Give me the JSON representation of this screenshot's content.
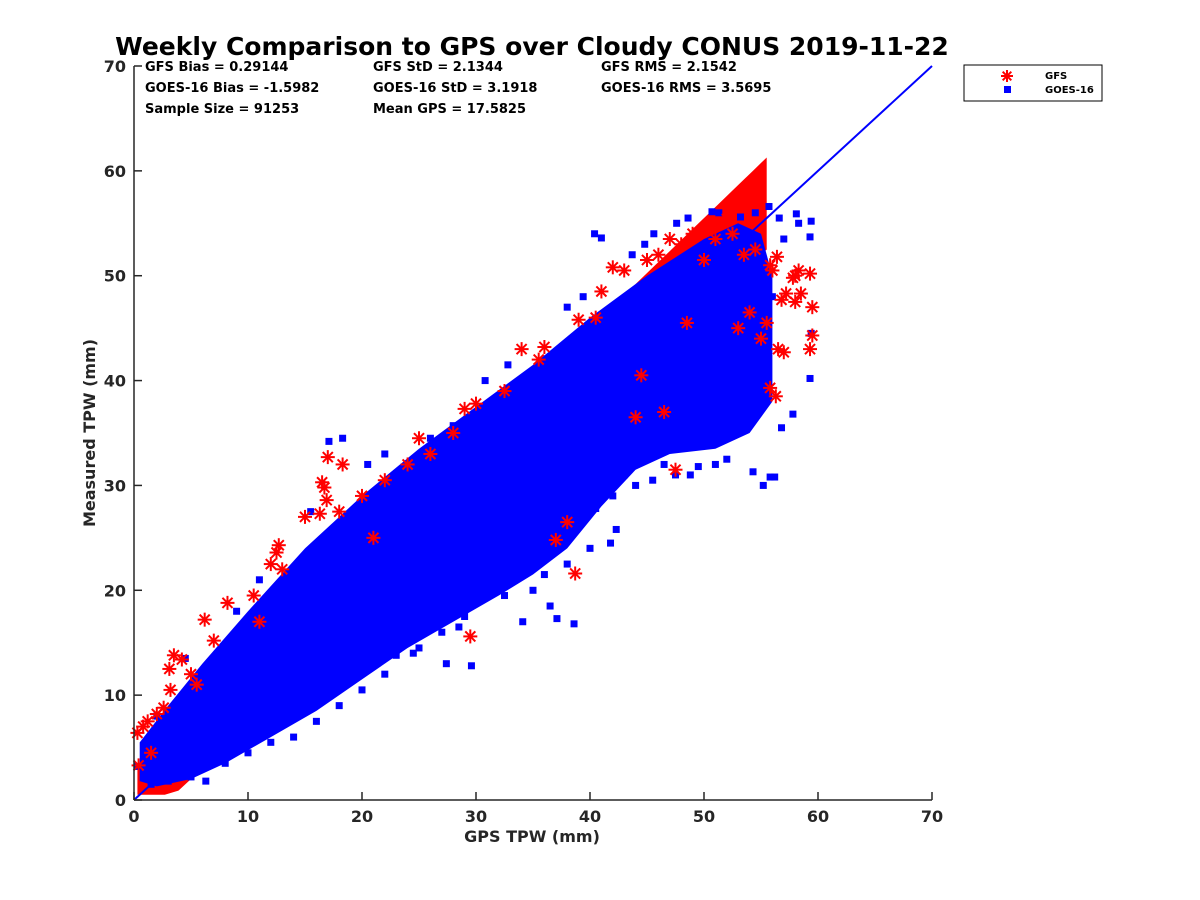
{
  "chart_data": {
    "type": "scatter",
    "title": "Weekly Comparison to GPS over Cloudy CONUS 2019-11-22",
    "xlabel": "GPS TPW (mm)",
    "ylabel": "Measured TPW (mm)",
    "xlim": [
      0,
      70
    ],
    "ylim": [
      0,
      70
    ],
    "x_ticks": [
      "0",
      "10",
      "20",
      "30",
      "40",
      "50",
      "60",
      "70"
    ],
    "y_ticks": [
      "0",
      "10",
      "20",
      "30",
      "40",
      "50",
      "60",
      "70"
    ],
    "grid": false,
    "legend_position": "outside-top-right",
    "statistics": [
      [
        "GFS Bias = 0.29144",
        "GFS StD = 2.1344",
        "GFS RMS = 2.1542"
      ],
      [
        "GOES-16 Bias = -1.5982",
        "GOES-16 StD = 3.1918",
        "GOES-16 RMS = 3.5695"
      ],
      [
        "Sample Size = 91253",
        "Mean GPS = 17.5825"
      ]
    ],
    "reference_line": {
      "x": [
        0,
        70
      ],
      "y": [
        0,
        70
      ],
      "color": "#0000ff"
    },
    "series": [
      {
        "name": "GFS",
        "marker": "asterisk",
        "color": "#ff0000",
        "points": [
          [
            0.3,
            6.4
          ],
          [
            0.4,
            3.3
          ],
          [
            0.8,
            7.0
          ],
          [
            1.2,
            7.5
          ],
          [
            2.0,
            8.2
          ],
          [
            2.6,
            8.8
          ],
          [
            3.1,
            12.5
          ],
          [
            3.5,
            13.8
          ],
          [
            4.2,
            13.4
          ],
          [
            5.0,
            12.0
          ],
          [
            6.2,
            17.2
          ],
          [
            7.0,
            15.2
          ],
          [
            8.2,
            18.8
          ],
          [
            10.5,
            19.5
          ],
          [
            12.0,
            22.5
          ],
          [
            12.5,
            23.6
          ],
          [
            12.7,
            24.3
          ],
          [
            13.0,
            22.0
          ],
          [
            15.0,
            27.0
          ],
          [
            16.3,
            27.3
          ],
          [
            16.5,
            30.3
          ],
          [
            16.7,
            29.8
          ],
          [
            17.0,
            32.7
          ],
          [
            16.9,
            28.6
          ],
          [
            18.0,
            27.5
          ],
          [
            18.3,
            32.0
          ],
          [
            20.0,
            29.0
          ],
          [
            22.0,
            30.5
          ],
          [
            24.0,
            32.0
          ],
          [
            25.0,
            34.5
          ],
          [
            26.0,
            33.0
          ],
          [
            28.0,
            35.0
          ],
          [
            29.0,
            37.3
          ],
          [
            29.5,
            15.6
          ],
          [
            30.0,
            37.8
          ],
          [
            32.5,
            39.0
          ],
          [
            34.0,
            43.0
          ],
          [
            35.5,
            42.0
          ],
          [
            36.0,
            43.2
          ],
          [
            37.0,
            24.8
          ],
          [
            38.0,
            26.5
          ],
          [
            38.7,
            21.6
          ],
          [
            39.0,
            45.8
          ],
          [
            40.5,
            46.0
          ],
          [
            41.0,
            48.5
          ],
          [
            42.0,
            50.8
          ],
          [
            43.0,
            50.5
          ],
          [
            44.0,
            36.5
          ],
          [
            45.0,
            51.5
          ],
          [
            46.0,
            52.0
          ],
          [
            46.5,
            37.0
          ],
          [
            47.0,
            53.5
          ],
          [
            48.0,
            53.0
          ],
          [
            48.5,
            45.5
          ],
          [
            49.0,
            54.0
          ],
          [
            50.0,
            51.5
          ],
          [
            51.0,
            53.5
          ],
          [
            52.0,
            55.4
          ],
          [
            52.5,
            54.0
          ],
          [
            53.0,
            45.0
          ],
          [
            53.5,
            52.0
          ],
          [
            54.0,
            46.5
          ],
          [
            54.5,
            52.5
          ],
          [
            55.0,
            44.0
          ],
          [
            55.5,
            45.5
          ],
          [
            55.8,
            39.3
          ],
          [
            55.8,
            51.0
          ],
          [
            56.0,
            50.5
          ],
          [
            56.3,
            38.5
          ],
          [
            56.4,
            51.8
          ],
          [
            56.5,
            43.0
          ],
          [
            56.8,
            47.7
          ],
          [
            57.0,
            42.7
          ],
          [
            57.2,
            48.3
          ],
          [
            57.8,
            49.8
          ],
          [
            58.0,
            47.5
          ],
          [
            58.0,
            50.0
          ],
          [
            58.3,
            50.5
          ],
          [
            58.5,
            48.3
          ],
          [
            59.3,
            50.2
          ],
          [
            59.5,
            47.0
          ],
          [
            59.5,
            44.3
          ],
          [
            59.3,
            43.0
          ],
          [
            44.5,
            40.5
          ],
          [
            47.5,
            31.5
          ],
          [
            21.0,
            25.0
          ],
          [
            11.0,
            17.0
          ],
          [
            5.5,
            11.0
          ],
          [
            1.5,
            4.5
          ],
          [
            3.2,
            10.5
          ]
        ]
      },
      {
        "name": "GOES-16",
        "marker": "square",
        "color": "#0000ff",
        "points": [
          [
            38.0,
            22.5
          ],
          [
            38.6,
            16.8
          ],
          [
            37.1,
            17.3
          ],
          [
            34.1,
            17.0
          ],
          [
            29.6,
            12.8
          ],
          [
            27.4,
            13.0
          ],
          [
            23.0,
            13.8
          ],
          [
            35.0,
            20.0
          ],
          [
            36.5,
            18.5
          ],
          [
            40.0,
            24.0
          ],
          [
            42.3,
            25.8
          ],
          [
            41.8,
            24.5
          ],
          [
            44.0,
            30.0
          ],
          [
            45.5,
            30.5
          ],
          [
            47.5,
            31.0
          ],
          [
            48.8,
            31.0
          ],
          [
            49.5,
            31.8
          ],
          [
            51.0,
            32.0
          ],
          [
            52.0,
            32.5
          ],
          [
            55.2,
            30.0
          ],
          [
            56.2,
            30.8
          ],
          [
            55.8,
            30.8
          ],
          [
            54.3,
            31.3
          ],
          [
            56.8,
            35.5
          ],
          [
            57.8,
            36.8
          ],
          [
            59.3,
            40.2
          ],
          [
            59.4,
            44.5
          ],
          [
            59.3,
            53.7
          ],
          [
            59.4,
            55.2
          ],
          [
            58.3,
            55.0
          ],
          [
            58.1,
            55.9
          ],
          [
            57.0,
            53.5
          ],
          [
            56.6,
            55.5
          ],
          [
            55.7,
            56.6
          ],
          [
            54.5,
            56.0
          ],
          [
            53.2,
            55.6
          ],
          [
            51.3,
            56.0
          ],
          [
            50.7,
            56.1
          ],
          [
            48.6,
            55.5
          ],
          [
            47.6,
            55.0
          ],
          [
            45.6,
            54.0
          ],
          [
            44.8,
            53.0
          ],
          [
            43.7,
            52.0
          ],
          [
            41.0,
            53.6
          ],
          [
            40.4,
            54.0
          ],
          [
            39.4,
            48.0
          ],
          [
            38.0,
            47.0
          ],
          [
            32.8,
            41.5
          ],
          [
            30.8,
            40.0
          ],
          [
            28.0,
            35.7
          ],
          [
            26.0,
            34.5
          ],
          [
            22.0,
            33.0
          ],
          [
            20.5,
            32.0
          ],
          [
            18.3,
            34.5
          ],
          [
            17.1,
            34.2
          ],
          [
            15.5,
            27.5
          ],
          [
            11.0,
            21.0
          ],
          [
            9.0,
            18.0
          ],
          [
            4.5,
            13.5
          ],
          [
            2.0,
            8.0
          ],
          [
            1.0,
            5.0
          ],
          [
            0.3,
            3.2
          ],
          [
            1.5,
            1.5
          ],
          [
            3.0,
            1.8
          ],
          [
            5.0,
            2.2
          ],
          [
            6.3,
            1.8
          ],
          [
            8.0,
            3.5
          ],
          [
            10.0,
            4.5
          ],
          [
            12.0,
            5.5
          ],
          [
            14.0,
            6.0
          ],
          [
            16.0,
            7.5
          ],
          [
            18.0,
            9.0
          ],
          [
            20.0,
            10.5
          ],
          [
            22.0,
            12.0
          ],
          [
            25.0,
            14.5
          ],
          [
            27.0,
            16.0
          ],
          [
            29.0,
            17.5
          ],
          [
            31.0,
            19.5
          ],
          [
            33.0,
            21.0
          ],
          [
            35.0,
            23.0
          ],
          [
            37.0,
            25.5
          ],
          [
            39.0,
            27.5
          ],
          [
            42.0,
            29.0
          ],
          [
            44.0,
            33.0
          ],
          [
            46.0,
            35.0
          ],
          [
            48.0,
            36.0
          ],
          [
            50.0,
            37.5
          ],
          [
            52.0,
            40.0
          ],
          [
            54.0,
            42.0
          ],
          [
            55.0,
            45.0
          ],
          [
            56.0,
            48.0
          ],
          [
            53.5,
            35.5
          ],
          [
            51.5,
            34.5
          ],
          [
            46.5,
            32.0
          ],
          [
            43.0,
            31.0
          ],
          [
            40.5,
            27.8
          ],
          [
            36.0,
            21.5
          ],
          [
            32.5,
            19.5
          ],
          [
            28.5,
            16.5
          ],
          [
            24.5,
            14.0
          ]
        ]
      }
    ]
  }
}
